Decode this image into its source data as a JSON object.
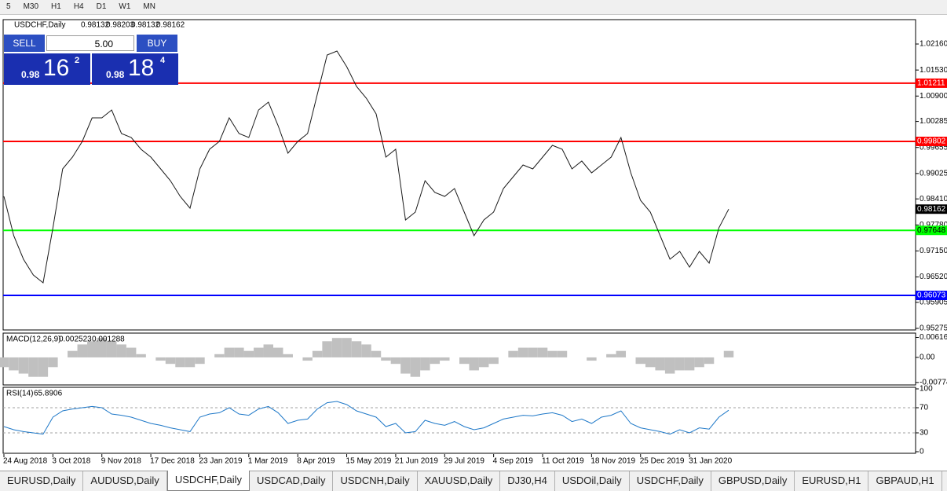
{
  "toolbar": [
    "5",
    "M30",
    "H1",
    "H4",
    "D1",
    "W1",
    "MN"
  ],
  "header": {
    "symbol": "USDCHF,Daily",
    "ohlc": [
      0.98132,
      0.98203,
      0.98132,
      0.98162
    ]
  },
  "trade": {
    "sell": "SELL",
    "buy": "BUY",
    "lots": "5.00",
    "sell_price": [
      "0.98",
      "16",
      "2"
    ],
    "buy_price": [
      "0.98",
      "18",
      "4"
    ]
  },
  "chart": {
    "type": "line",
    "values": [
      0.9847,
      0.97519,
      0.96949,
      0.96568,
      0.96378,
      0.97709,
      0.99136,
      0.99421,
      0.99802,
      1.00372,
      1.00372,
      1.00562,
      0.99992,
      0.99897,
      0.99611,
      0.99421,
      0.99136,
      0.98851,
      0.9847,
      0.98185,
      0.99136,
      0.99611,
      0.99802,
      1.00372,
      0.99992,
      0.99897,
      1.00562,
      1.00753,
      1.00182,
      0.99516,
      0.99802,
      0.99992,
      1.00943,
      1.01894,
      1.01989,
      1.01608,
      1.01133,
      1.00848,
      1.00467,
      0.99421,
      0.99611,
      0.979,
      0.9809,
      0.98851,
      0.98565,
      0.9847,
      0.9866,
      0.9809,
      0.97519,
      0.979,
      0.9809,
      0.9866,
      0.98946,
      0.99231,
      0.99136,
      0.99421,
      0.99706,
      0.99611,
      0.99136,
      0.99326,
      0.99041,
      0.99231,
      0.99421,
      0.99897,
      0.99041,
      0.98375,
      0.9809,
      0.97519,
      0.96949,
      0.97139,
      0.96758,
      0.97139,
      0.96853,
      0.97709,
      0.98162
    ],
    "ylim": [
      0.95237,
      1.0275
    ],
    "yticks": [
      {
        "value": 1.0216,
        "label": "1.02160"
      },
      {
        "value": 1.0153,
        "label": "1.01530"
      },
      {
        "value": 1.009,
        "label": "1.00900"
      },
      1.00285,
      0.99655,
      0.99025,
      {
        "value": 0.9841,
        "label": "0.98410"
      },
      {
        "value": 0.9778,
        "label": "0.97780"
      },
      {
        "value": 0.9715,
        "label": "0.97150"
      },
      {
        "value": 0.9652,
        "label": "0.96520"
      },
      0.95905,
      0.95275
    ],
    "xticks": [
      {
        "value": 0,
        "label": "24 Aug 2018"
      },
      {
        "value": 5,
        "label": "3 Oct 2018"
      },
      {
        "value": 10,
        "label": "9 Nov 2018"
      },
      {
        "value": 15,
        "label": "17 Dec 2018"
      },
      {
        "value": 20,
        "label": "23 Jan 2019"
      },
      {
        "value": 25,
        "label": "1 Mar 2019"
      },
      {
        "value": 30,
        "label": "8 Apr 2019"
      },
      {
        "value": 35,
        "label": "15 May 2019"
      },
      {
        "value": 40,
        "label": "21 Jun 2019"
      },
      {
        "value": 45,
        "label": "29 Jul 2019"
      },
      {
        "value": 50,
        "label": "4 Sep 2019"
      },
      {
        "value": 55,
        "label": "11 Oct 2019"
      },
      {
        "value": 60,
        "label": "18 Nov 2019"
      },
      {
        "value": 65,
        "label": "25 Dec 2019"
      },
      {
        "value": 70,
        "label": "31 Jan 2020"
      }
    ],
    "levels": [
      {
        "value": 1.01211,
        "color": "#ff0000"
      },
      {
        "value": 0.99802,
        "color": "#ff0000"
      },
      {
        "value": 0.97648,
        "color": "#00ff00"
      },
      {
        "value": 0.96073,
        "color": "#0000ff"
      }
    ],
    "current": 0.98162,
    "color": "#1a1a1a"
  },
  "macd": {
    "title": "MACD(12,26,9)",
    "shown": [
      0.002523,
      0.001288
    ],
    "values": [
      -0.003,
      -0.004,
      -0.005,
      -0.006,
      -0.006,
      -0.003,
      0.0,
      0.002,
      0.004,
      0.005,
      0.006,
      0.005,
      0.004,
      0.003,
      0.001,
      0.0,
      -0.001,
      -0.002,
      -0.003,
      -0.003,
      -0.002,
      0.0,
      0.001,
      0.003,
      0.003,
      0.002,
      0.003,
      0.004,
      0.003,
      0.001,
      0.0,
      -0.001,
      0.002,
      0.005,
      0.006,
      0.006,
      0.005,
      0.004,
      0.002,
      -0.001,
      -0.002,
      -0.005,
      -0.006,
      -0.004,
      -0.002,
      -0.001,
      0.0,
      -0.002,
      -0.004,
      -0.003,
      -0.002,
      0.0,
      0.002,
      0.003,
      0.003,
      0.003,
      0.002,
      0.002,
      0.0,
      0.0,
      -0.001,
      0.0,
      0.001,
      0.002,
      0.0,
      -0.002,
      -0.003,
      -0.004,
      -0.005,
      -0.004,
      -0.004,
      -0.003,
      -0.002,
      0.0,
      0.002
    ],
    "ylim": [
      -0.0085,
      0.0075
    ],
    "yticks": [
      0.006166,
      {
        "value": 0,
        "label": "0.00"
      },
      -0.00774
    ],
    "color": "#c0c0c0"
  },
  "rsi": {
    "title": "RSI(14)",
    "shown": 65.8906,
    "values": [
      40,
      35,
      32,
      30,
      28,
      55,
      65,
      68,
      70,
      72,
      70,
      60,
      58,
      55,
      50,
      45,
      42,
      38,
      35,
      32,
      55,
      60,
      62,
      70,
      60,
      58,
      68,
      72,
      62,
      45,
      50,
      52,
      68,
      78,
      80,
      75,
      65,
      60,
      55,
      40,
      45,
      30,
      32,
      50,
      45,
      42,
      48,
      40,
      35,
      38,
      45,
      52,
      55,
      58,
      57,
      60,
      62,
      58,
      48,
      52,
      45,
      55,
      58,
      65,
      45,
      38,
      35,
      32,
      28,
      35,
      30,
      38,
      36,
      55,
      66
    ],
    "ylim": [
      0,
      100
    ],
    "yticks": [
      100,
      70,
      30,
      0
    ],
    "levels": [
      70,
      30
    ],
    "color": "#1e78c8"
  },
  "tabs": [
    "EURUSD,Daily",
    "AUDUSD,Daily",
    "USDCHF,Daily",
    "USDCAD,Daily",
    "USDCNH,Daily",
    "XAUUSD,Daily",
    "DJ30,H4",
    "USDOil,Daily",
    "USDCHF,Daily",
    "GBPUSD,Daily",
    "EURUSD,H1",
    "GBPAUD,H1"
  ],
  "active_tab": 2
}
